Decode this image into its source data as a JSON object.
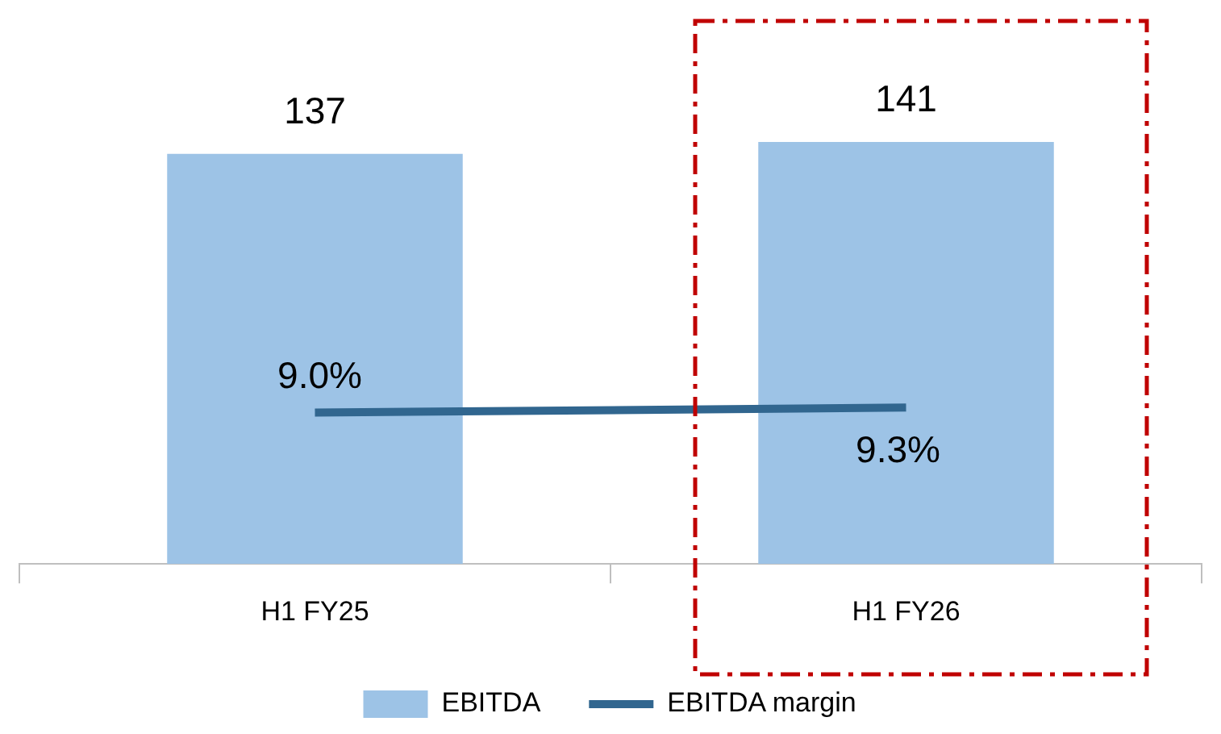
{
  "chart_data": {
    "type": "bar",
    "categories": [
      "H1 FY25",
      "H1 FY26"
    ],
    "series": [
      {
        "name": "EBITDA",
        "color": "#9dc3e6",
        "values": [
          137,
          141
        ],
        "value_labels": [
          "137",
          "141"
        ]
      },
      {
        "name": "EBITDA margin",
        "type": "line",
        "axis": "y2",
        "color": "#31668f",
        "values": [
          9.0,
          9.3
        ],
        "value_labels": [
          "9.0%",
          "9.3%"
        ]
      }
    ],
    "legend": "bottom",
    "grid": false,
    "marker": "none",
    "line_style": "solid"
  }
}
